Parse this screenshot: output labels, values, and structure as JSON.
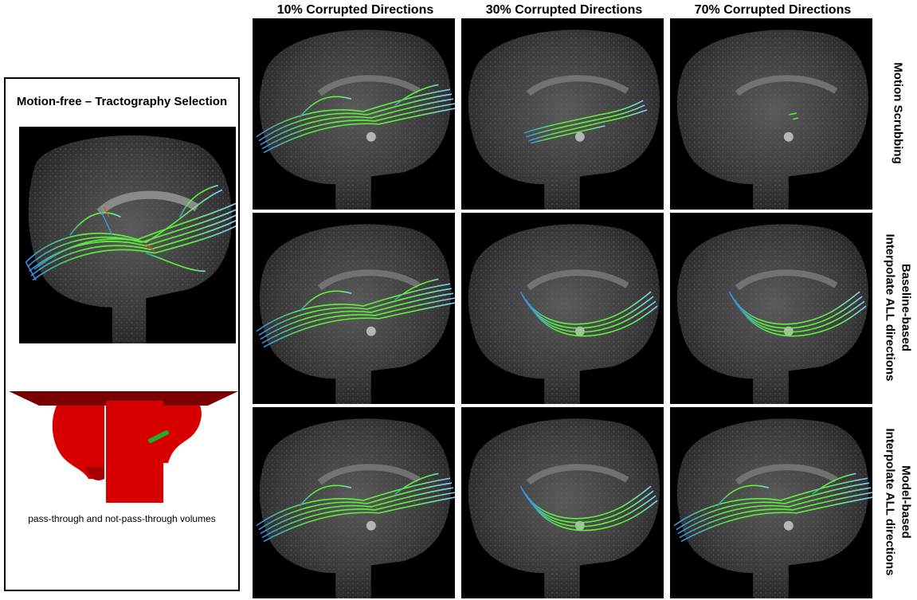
{
  "columns": [
    "10% Corrupted Directions",
    "30% Corrupted Directions",
    "70% Corrupted Directions"
  ],
  "rows": [
    {
      "lines": [
        "Motion Scrubbing"
      ]
    },
    {
      "lines": [
        "Baseline-based",
        "Interpolate ALL directions"
      ]
    },
    {
      "lines": [
        "Model-based",
        "Interpolate ALL directions"
      ]
    }
  ],
  "reference": {
    "title": "Motion-free – Tractography Selection",
    "caption": "pass-through and not-pass-through volumes"
  },
  "colors": {
    "tract_main": "#5bf23a",
    "tract_blue": "#3a8fe8",
    "tract_red": "#e0502a",
    "volume_red": "#d60000",
    "volume_dark": "#7a0000",
    "roi_green": "#1fb02a"
  }
}
